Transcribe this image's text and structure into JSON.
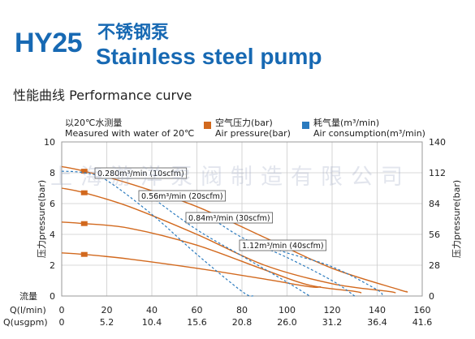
{
  "header": {
    "model": "HY25",
    "title_cn": "不锈钢泵",
    "title_en": "Stainless steel pump",
    "subtitle": "性能曲线  Performance curve"
  },
  "notes": {
    "water_cn": "以20℃水测量",
    "water_en": "Measured with water of 20℃",
    "air_pressure_cn": "空气压力(bar)",
    "air_pressure_en": "Air pressure(bar)",
    "air_consumption_cn": "耗气量(m³/min)",
    "air_consumption_en": "Air consumption(m³/min)"
  },
  "watermark": "上海游洋泵阀制造有限公司",
  "colors": {
    "title": "#1769b3",
    "pressure": "#d2691e",
    "consumption": "#2b7bbf",
    "grid": "#cccccc"
  },
  "chart_data": {
    "type": "line",
    "xlabel_flow": "流量",
    "xlabel_lmin": "Q(l/min)",
    "xlabel_usgpm": "Q(usgpm)",
    "ylabel_left": "压力pressure(bar)",
    "ylabel_right": "压力pressure(bar)",
    "xlim": [
      0,
      160
    ],
    "ylim_left": [
      0,
      10
    ],
    "ylim_right": [
      0,
      140
    ],
    "x_ticks_lmin": [
      "0",
      "20",
      "40",
      "60",
      "80",
      "100",
      "120",
      "140",
      "160"
    ],
    "x_ticks_usgpm": [
      "0",
      "5.2",
      "10.4",
      "15.6",
      "20.8",
      "26.0",
      "31.2",
      "36.4",
      "41.6"
    ],
    "y_ticks_left": [
      "0",
      "2",
      "4",
      "6",
      "8",
      "10"
    ],
    "y_ticks_right": [
      "0",
      "28",
      "56",
      "84",
      "112",
      "140"
    ],
    "grid": true,
    "pressure_curves": [
      {
        "points": [
          [
            0,
            8.4
          ],
          [
            10,
            8.1
          ],
          [
            30,
            7.3
          ],
          [
            60,
            5.8
          ],
          [
            90,
            3.8
          ],
          [
            120,
            1.8
          ],
          [
            150,
            0.4
          ],
          [
            153,
            0.3
          ]
        ]
      },
      {
        "points": [
          [
            0,
            7.0
          ],
          [
            10,
            6.7
          ],
          [
            30,
            5.8
          ],
          [
            60,
            4.0
          ],
          [
            90,
            2.0
          ],
          [
            120,
            0.8
          ],
          [
            145,
            0.3
          ],
          [
            148,
            0.2
          ]
        ]
      },
      {
        "points": [
          [
            0,
            4.8
          ],
          [
            10,
            4.7
          ],
          [
            30,
            4.4
          ],
          [
            60,
            3.3
          ],
          [
            90,
            1.7
          ],
          [
            110,
            0.7
          ],
          [
            130,
            0.3
          ],
          [
            133,
            0.2
          ]
        ]
      },
      {
        "points": [
          [
            0,
            2.8
          ],
          [
            10,
            2.7
          ],
          [
            30,
            2.4
          ],
          [
            60,
            1.8
          ],
          [
            90,
            1.1
          ],
          [
            110,
            0.6
          ],
          [
            115,
            0.6
          ]
        ]
      }
    ],
    "consumption_curves": [
      {
        "label": "0.280m³/min (10scfm)",
        "points": [
          [
            0,
            8.1
          ],
          [
            10,
            8.0
          ],
          [
            20,
            7.5
          ],
          [
            40,
            5.3
          ],
          [
            60,
            2.7
          ],
          [
            80,
            0.3
          ],
          [
            85,
            0.0
          ]
        ]
      },
      {
        "label": "0.56m³/min (20scfm)",
        "points": [
          [
            40,
            6.4
          ],
          [
            60,
            4.3
          ],
          [
            80,
            2.6
          ],
          [
            100,
            0.9
          ],
          [
            110,
            0.0
          ]
        ]
      },
      {
        "label": "0.84m³/min (30scfm)",
        "points": [
          [
            65,
            5.2
          ],
          [
            80,
            3.8
          ],
          [
            100,
            2.5
          ],
          [
            120,
            1.0
          ],
          [
            130,
            0.0
          ]
        ]
      },
      {
        "label": "1.12m³/min (40scfm)",
        "points": [
          [
            85,
            3.5
          ],
          [
            100,
            2.8
          ],
          [
            120,
            1.9
          ],
          [
            140,
            0.4
          ],
          [
            142,
            0.0
          ]
        ]
      }
    ]
  }
}
